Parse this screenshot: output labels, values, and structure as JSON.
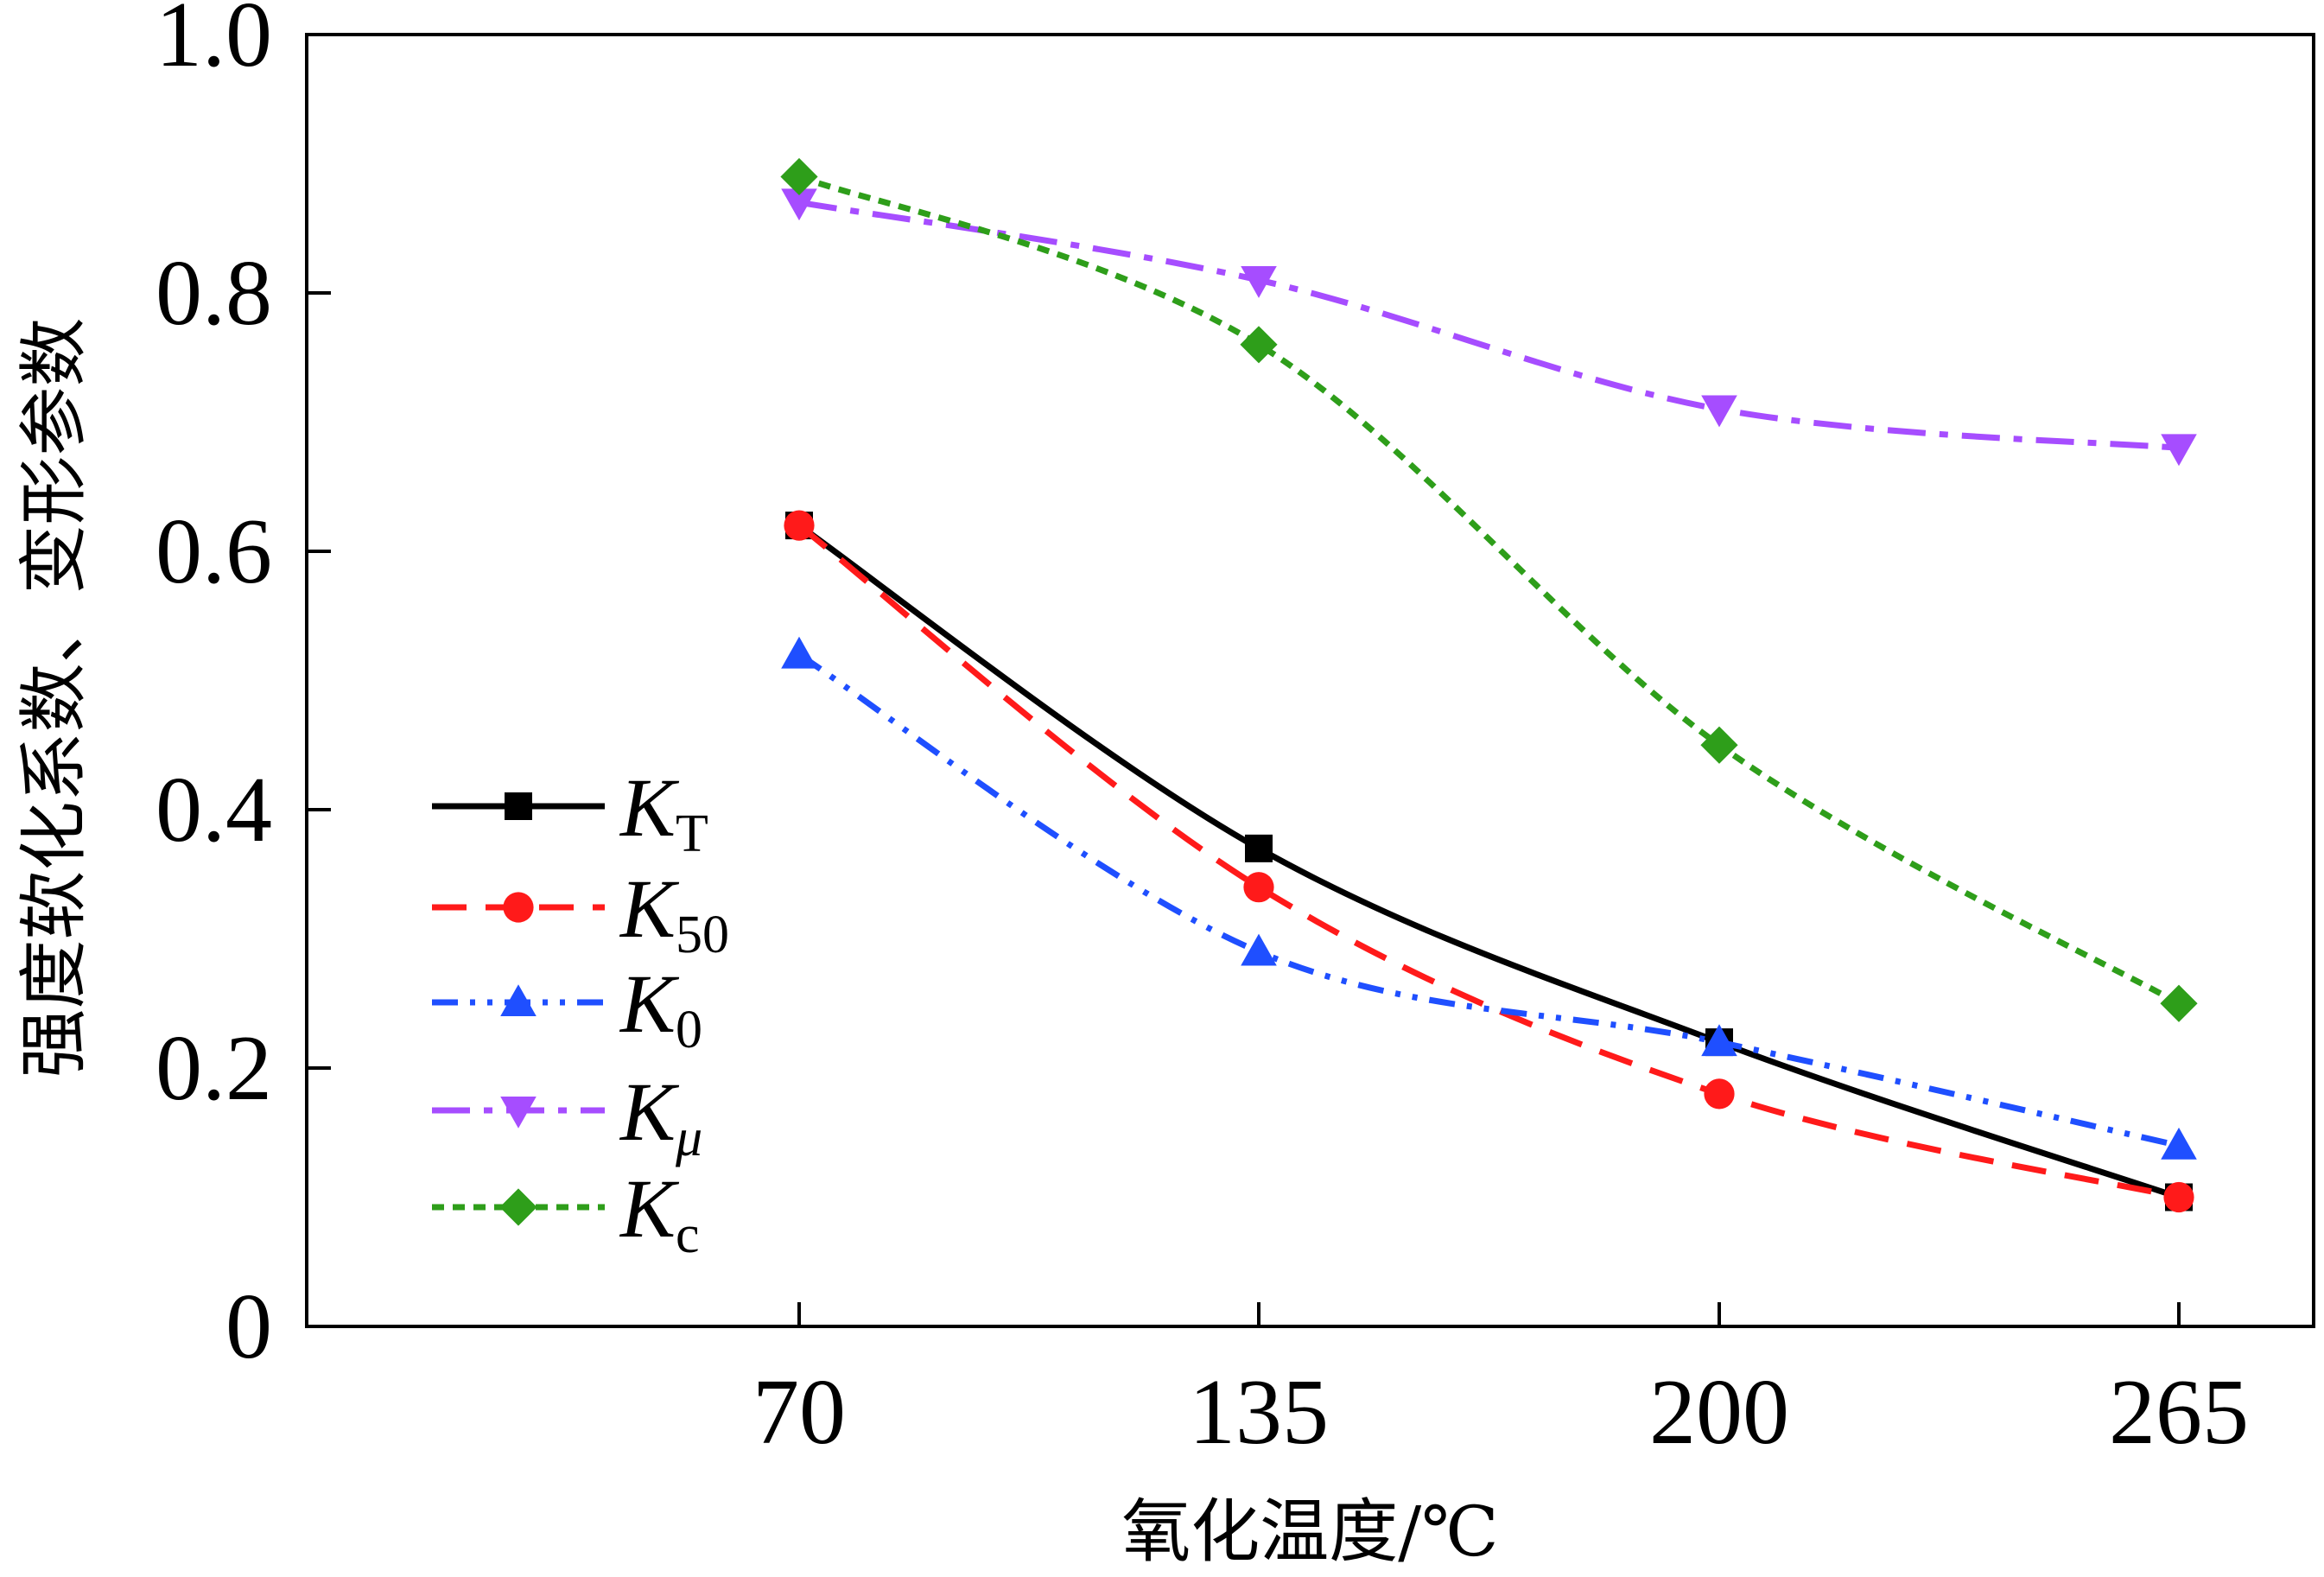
{
  "chart_data": {
    "type": "line",
    "title": "",
    "xlabel": "氧化温度/℃",
    "ylabel": "强度软化系数、变形参数",
    "categories": [
      70,
      135,
      200,
      265
    ],
    "x_tick_labels": [
      "70",
      "135",
      "200",
      "265"
    ],
    "ylim": [
      0,
      1.0
    ],
    "y_ticks": [
      0,
      0.2,
      0.4,
      0.6,
      0.8,
      1.0
    ],
    "y_tick_labels": [
      "0",
      "0.2",
      "0.4",
      "0.6",
      "0.8",
      "1.0"
    ],
    "grid": false,
    "legend_position": "left-middle",
    "series": [
      {
        "name": "K",
        "subscript": "T",
        "subscript_italic": false,
        "color": "#000000",
        "marker": "square",
        "line": "solid",
        "values": [
          0.62,
          0.37,
          0.22,
          0.1
        ]
      },
      {
        "name": "K",
        "subscript": "50",
        "subscript_italic": false,
        "color": "#ff1a1a",
        "marker": "circle",
        "line": "dashed",
        "values": [
          0.62,
          0.34,
          0.18,
          0.1
        ]
      },
      {
        "name": "K",
        "subscript": "0",
        "subscript_italic": false,
        "color": "#1f4fff",
        "marker": "triangle-up",
        "line": "dash-dot-dot",
        "values": [
          0.52,
          0.29,
          0.22,
          0.14
        ]
      },
      {
        "name": "K",
        "subscript": "μ",
        "subscript_italic": true,
        "color": "#a64dff",
        "marker": "triangle-down",
        "line": "dash-dot",
        "values": [
          0.87,
          0.81,
          0.71,
          0.68
        ]
      },
      {
        "name": "K",
        "subscript": "c",
        "subscript_italic": false,
        "color": "#2e9e1a",
        "marker": "diamond",
        "line": "dotted",
        "values": [
          0.89,
          0.76,
          0.45,
          0.25
        ]
      }
    ]
  }
}
